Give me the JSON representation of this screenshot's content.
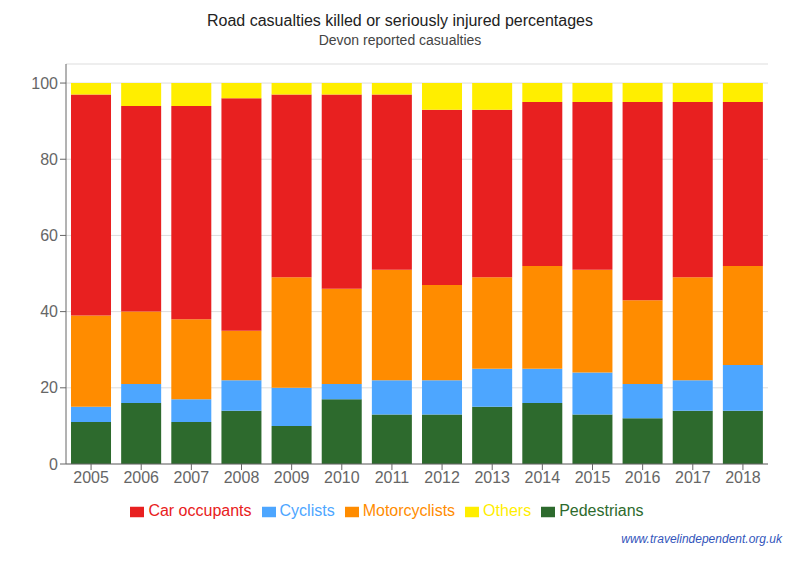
{
  "chart_data": {
    "type": "bar",
    "title": "Road casualties killed or seriously injured percentages",
    "subtitle": "Devon reported casualties",
    "annotations": [
      "www.travelindependent.org.uk"
    ],
    "categories": [
      "2005",
      "2006",
      "2007",
      "2008",
      "2009",
      "2010",
      "2011",
      "2012",
      "2013",
      "2014",
      "2015",
      "2016",
      "2017",
      "2018"
    ],
    "series": [
      {
        "name": "Pedestrians",
        "color": "#2d6a2d",
        "values": [
          11,
          16,
          11,
          14,
          10,
          17,
          13,
          13,
          15,
          16,
          13,
          12,
          14,
          14
        ]
      },
      {
        "name": "Cyclists",
        "color": "#4da6ff",
        "values": [
          4,
          5,
          6,
          8,
          10,
          4,
          9,
          9,
          10,
          9,
          11,
          9,
          8,
          12
        ]
      },
      {
        "name": "Motorcyclists",
        "color": "#ff8c00",
        "values": [
          24,
          19,
          21,
          13,
          29,
          25,
          29,
          25,
          24,
          27,
          27,
          22,
          27,
          26
        ]
      },
      {
        "name": "Car occupants",
        "color": "#e82020",
        "values": [
          58,
          54,
          56,
          61,
          48,
          51,
          46,
          46,
          44,
          43,
          44,
          52,
          46,
          43
        ]
      },
      {
        "name": "Others",
        "color": "#ffee00",
        "values": [
          3,
          6,
          6,
          4,
          3,
          3,
          3,
          7,
          7,
          5,
          5,
          5,
          5,
          5
        ]
      }
    ],
    "ylim": [
      0,
      105
    ],
    "yticks": [
      0,
      20,
      40,
      60,
      80,
      100
    ],
    "grid": true,
    "stacked": true,
    "legend": "bottom"
  }
}
